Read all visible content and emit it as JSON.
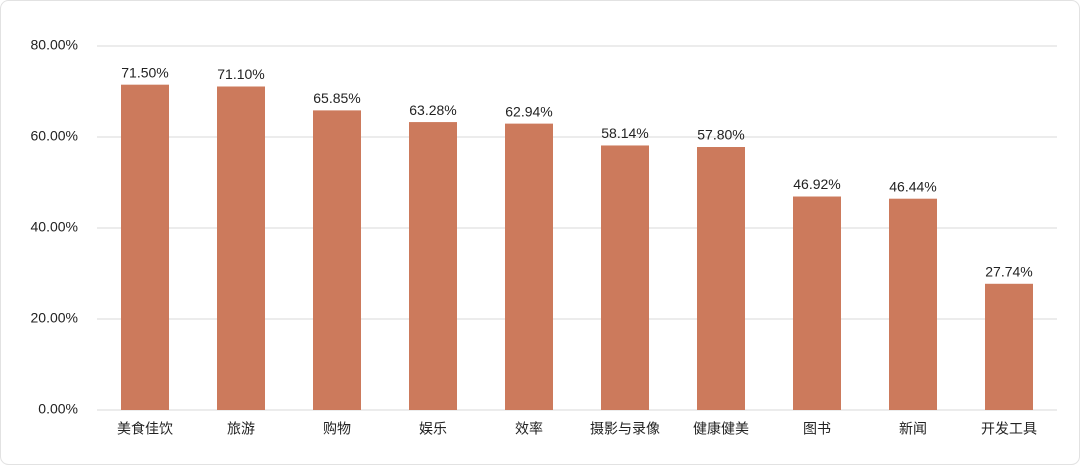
{
  "chart_data": {
    "type": "bar",
    "categories": [
      "美食佳饮",
      "旅游",
      "购物",
      "娱乐",
      "效率",
      "摄影与录像",
      "健康健美",
      "图书",
      "新闻",
      "开发工具"
    ],
    "values": [
      71.5,
      71.1,
      65.85,
      63.28,
      62.94,
      58.14,
      57.8,
      46.92,
      46.44,
      27.74
    ],
    "value_labels": [
      "71.50%",
      "71.10%",
      "65.85%",
      "63.28%",
      "62.94%",
      "58.14%",
      "57.80%",
      "46.92%",
      "46.44%",
      "27.74%"
    ],
    "color": "#cc7a5c",
    "ylim": [
      0,
      80
    ],
    "yticks": [
      {
        "value": 0,
        "label": "0.00%"
      },
      {
        "value": 20,
        "label": "20.00%"
      },
      {
        "value": 40,
        "label": "40.00%"
      },
      {
        "value": 60,
        "label": "60.00%"
      },
      {
        "value": 80,
        "label": "80.00%"
      }
    ],
    "grid": true
  }
}
